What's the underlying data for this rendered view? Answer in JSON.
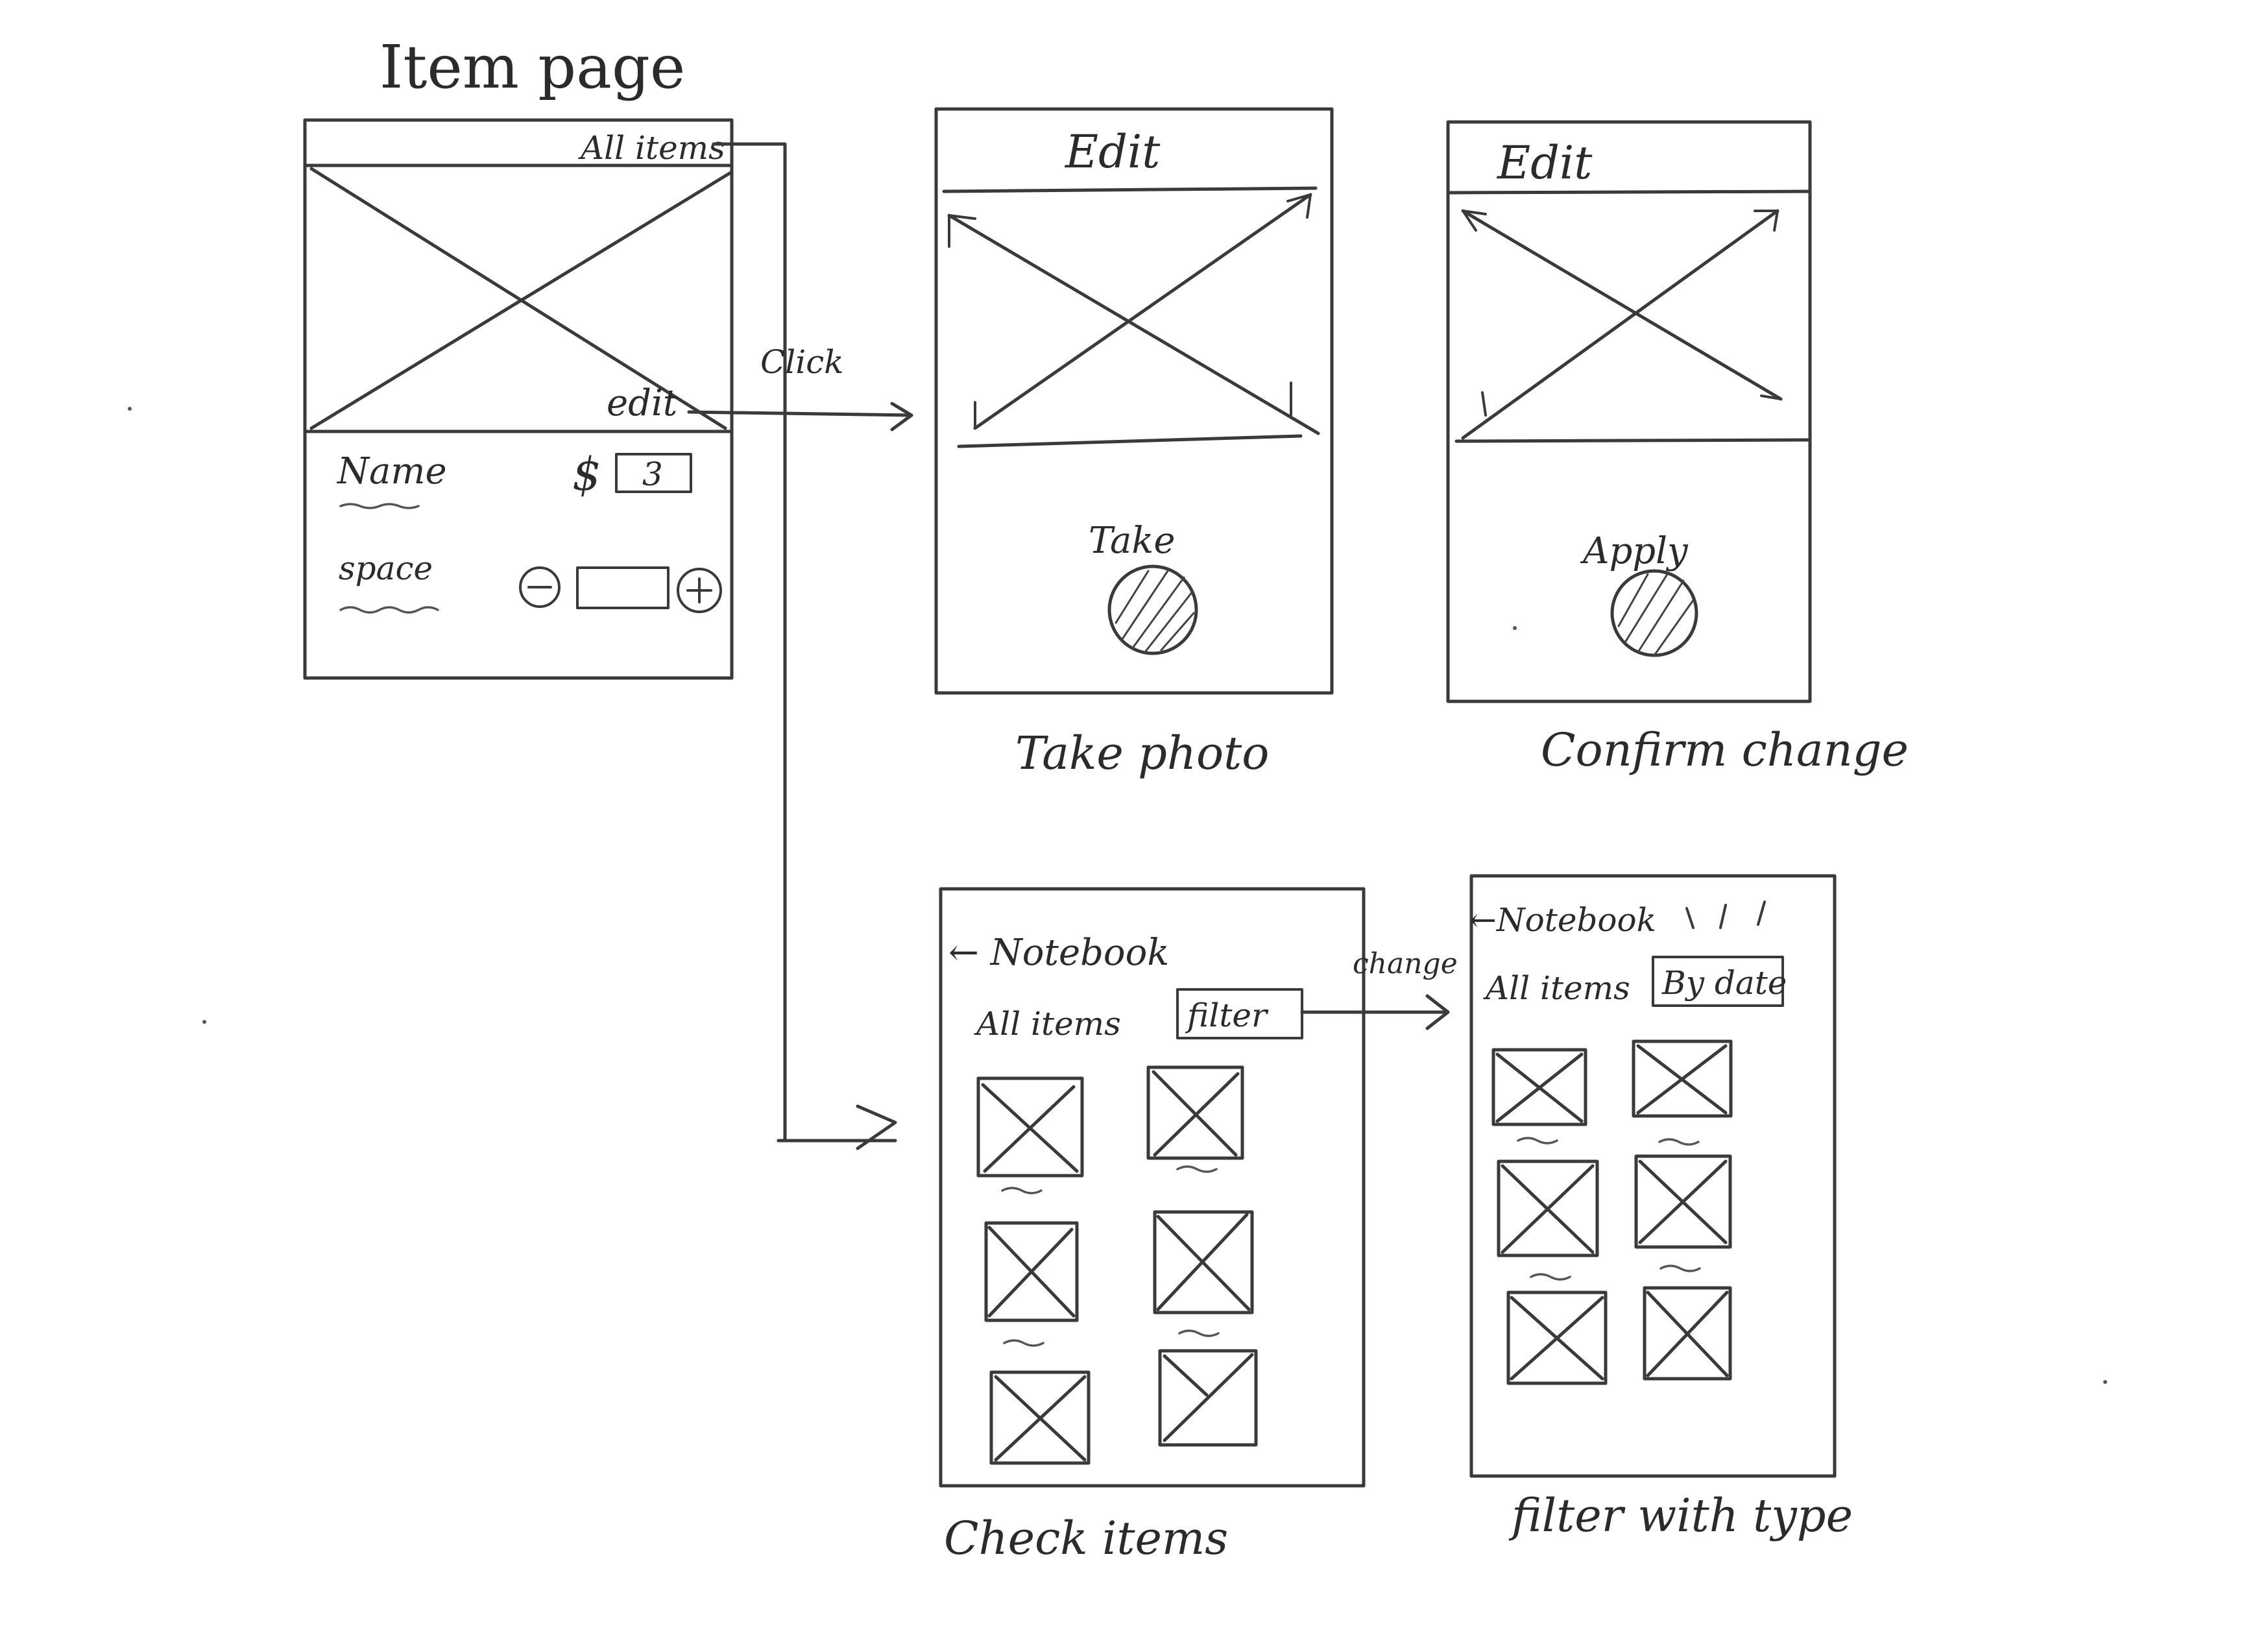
{
  "item_page": {
    "title": "Item page",
    "all_items_link": "All items",
    "edit_link": "edit",
    "name_label": "Name",
    "price_prefix": "$",
    "price_value": "3",
    "space_label": "space",
    "minus_symbol": "−",
    "plus_symbol": "+"
  },
  "flow_labels": {
    "click": "Click",
    "change": "change"
  },
  "take_photo_screen": {
    "header": "Edit",
    "button_label": "Take",
    "caption": "Take photo"
  },
  "confirm_change_screen": {
    "header": "Edit",
    "button_label": "Apply",
    "caption": "Confirm change"
  },
  "check_items_screen": {
    "back_title": "← Notebook",
    "list_label": "All items",
    "filter_button": "filter",
    "caption": "Check items",
    "item_count": 6
  },
  "filter_screen": {
    "back_title": "←Notebook",
    "list_label": "All items",
    "sort_button": "By date",
    "caption": "filter with type",
    "item_count": 6
  }
}
